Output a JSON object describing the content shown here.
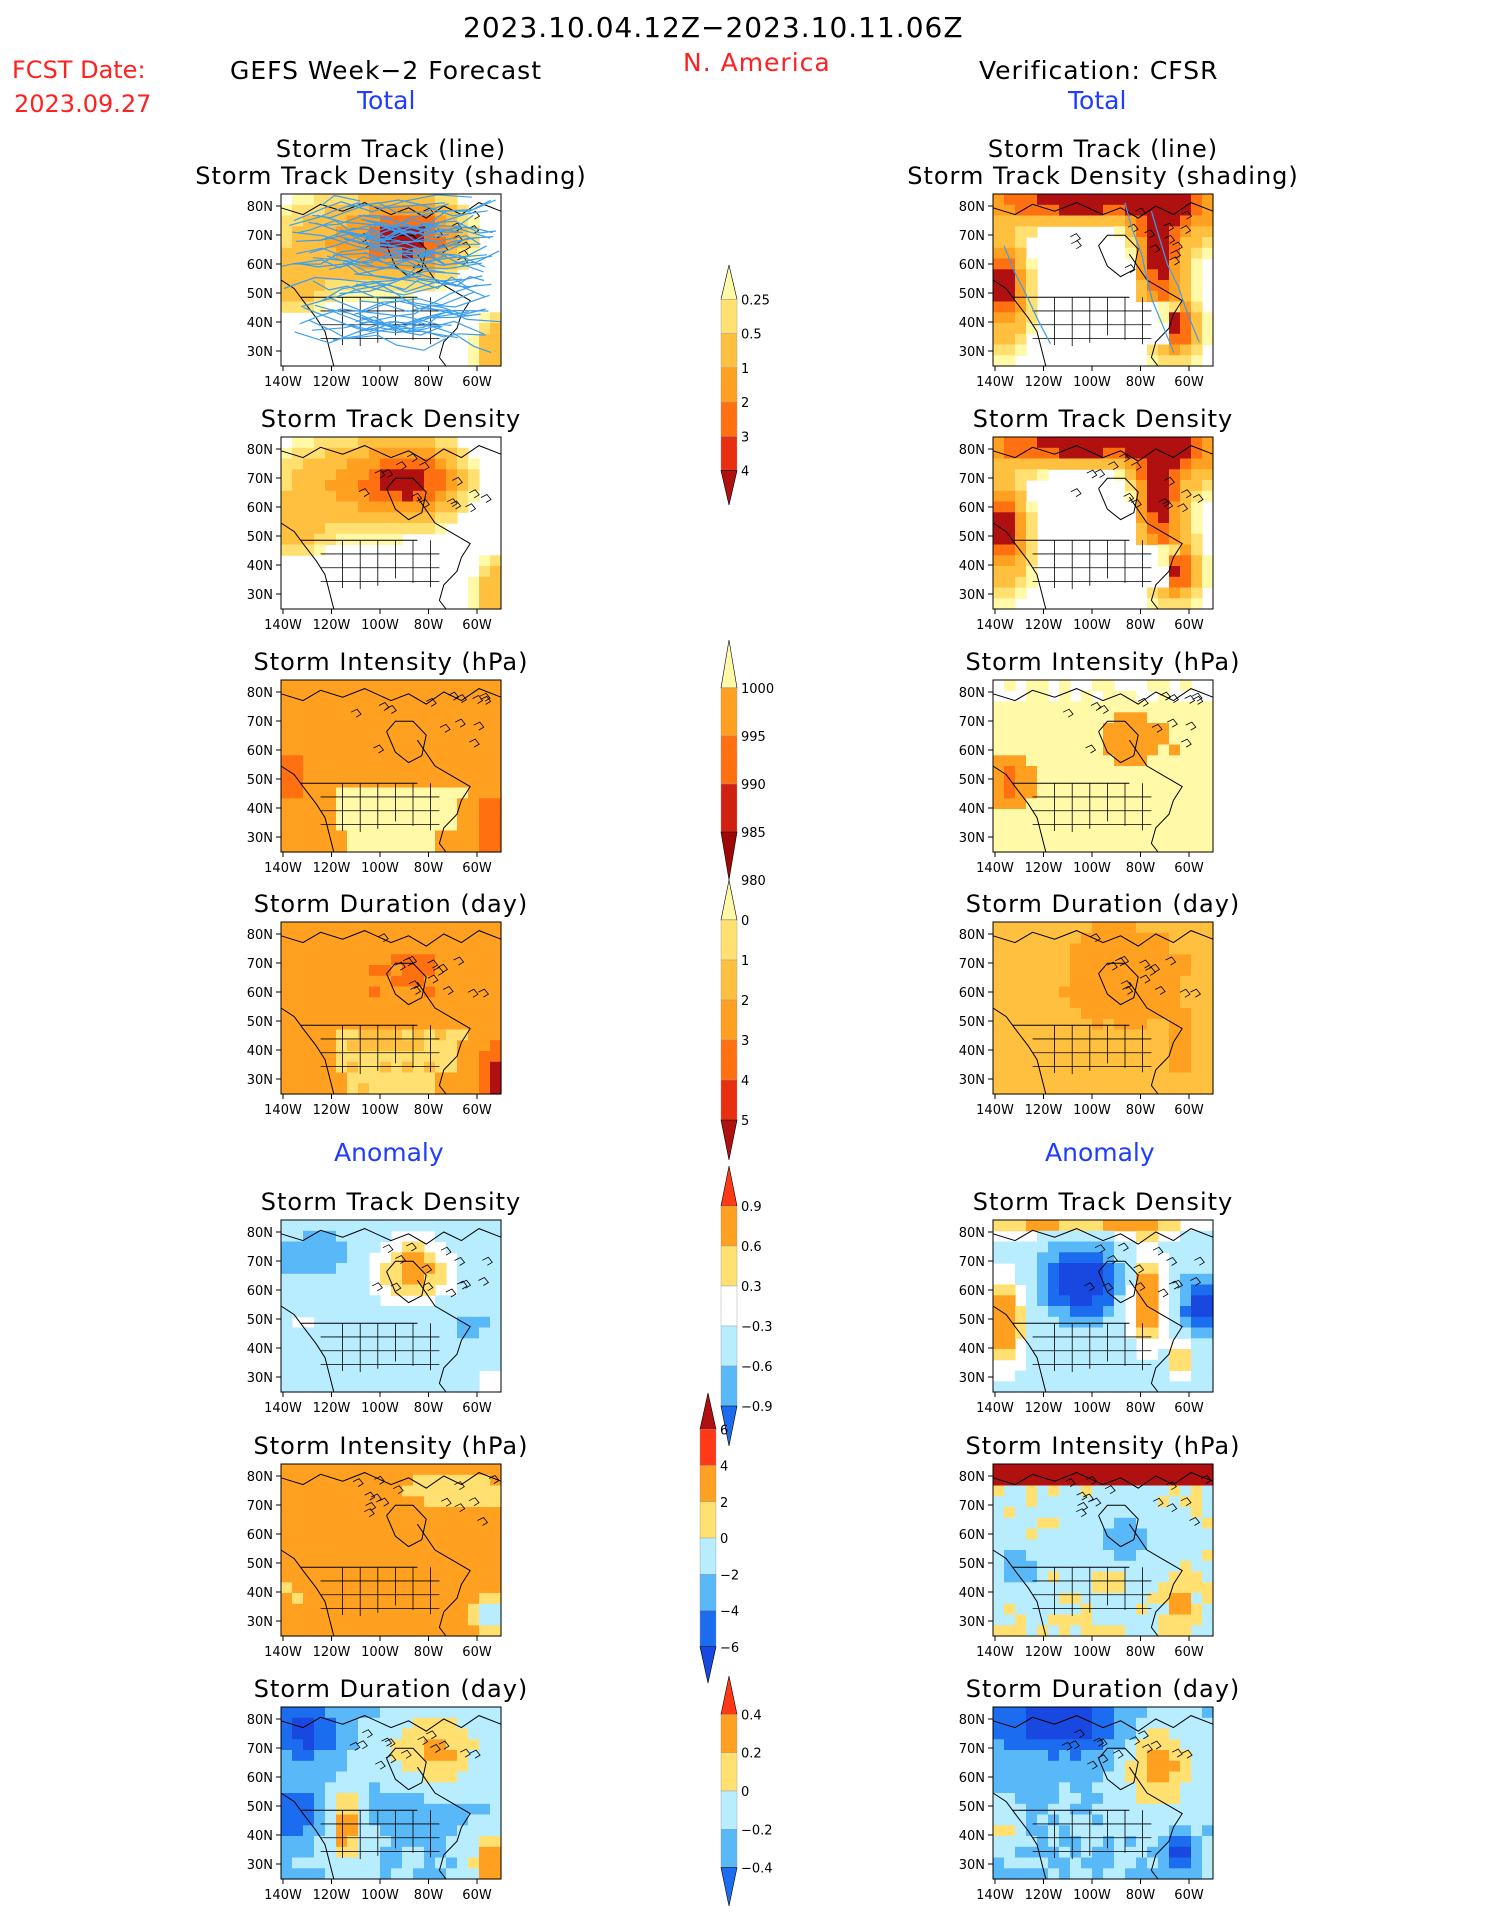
{
  "header": {
    "period": "2023.10.04.12Z−2023.10.11.06Z",
    "fcst_label": "FCST Date:",
    "fcst_date": "2023.09.27",
    "left_title": "GEFS Week−2 Forecast",
    "region": "N. America",
    "right_title": "Verification: CFSR",
    "total_label": "Total",
    "anomaly_label": "Anomaly"
  },
  "chart_data": {
    "type": "heatmap",
    "x_ticks": [
      "140W",
      "120W",
      "100W",
      "80W",
      "60W"
    ],
    "y_ticks": [
      "80N",
      "70N",
      "60N",
      "50N",
      "40N",
      "30N"
    ],
    "panels": [
      {
        "row": 0,
        "col": "forecast",
        "title": [
          "Storm Track (line)",
          "Storm Track Density (shading)"
        ],
        "field": "density",
        "tracks": true
      },
      {
        "row": 0,
        "col": "verification",
        "title": [
          "Storm Track (line)",
          "Storm Track Density (shading)"
        ],
        "field": "density",
        "tracks": true
      },
      {
        "row": 1,
        "col": "forecast",
        "title": [
          "Storm Track Density"
        ],
        "field": "density"
      },
      {
        "row": 1,
        "col": "verification",
        "title": [
          "Storm Track Density"
        ],
        "field": "density"
      },
      {
        "row": 2,
        "col": "forecast",
        "title": [
          "Storm Intensity (hPa)"
        ],
        "field": "intensity"
      },
      {
        "row": 2,
        "col": "verification",
        "title": [
          "Storm Intensity (hPa)"
        ],
        "field": "intensity"
      },
      {
        "row": 3,
        "col": "forecast",
        "title": [
          "Storm Duration (day)"
        ],
        "field": "duration"
      },
      {
        "row": 3,
        "col": "verification",
        "title": [
          "Storm Duration (day)"
        ],
        "field": "duration"
      },
      {
        "row": 4,
        "col": "forecast",
        "title": [
          "Storm Track Density"
        ],
        "field": "density_anom"
      },
      {
        "row": 4,
        "col": "verification",
        "title": [
          "Storm Track Density"
        ],
        "field": "density_anom"
      },
      {
        "row": 5,
        "col": "forecast",
        "title": [
          "Storm Intensity (hPa)"
        ],
        "field": "intensity_anom"
      },
      {
        "row": 5,
        "col": "verification",
        "title": [
          "Storm Intensity (hPa)"
        ],
        "field": "intensity_anom"
      },
      {
        "row": 6,
        "col": "forecast",
        "title": [
          "Storm Duration (day)"
        ],
        "field": "duration_anom"
      },
      {
        "row": 6,
        "col": "verification",
        "title": [
          "Storm Duration (day)"
        ],
        "field": "duration_anom"
      }
    ],
    "colorbars": [
      {
        "name": "density",
        "labels": [
          "0.25",
          "0.5",
          "1",
          "2",
          "3",
          "4"
        ],
        "colors": [
          "#fff9a8",
          "#ffe070",
          "#ffc040",
          "#ffa020",
          "#ff7010",
          "#e83010",
          "#b01010"
        ],
        "extend": "max"
      },
      {
        "name": "intensity",
        "labels": [
          "1000",
          "995",
          "990",
          "985",
          "980"
        ],
        "colors": [
          "#fff9a8",
          "#ffa020",
          "#ff7010",
          "#d02010",
          "#a00808"
        ],
        "extend": "min"
      },
      {
        "name": "duration",
        "labels": [
          "0",
          "1",
          "2",
          "3",
          "4",
          "5"
        ],
        "colors": [
          "#fff9a8",
          "#ffe070",
          "#ffc040",
          "#ffa020",
          "#ff7010",
          "#e83010",
          "#b01010"
        ],
        "extend": "max"
      },
      {
        "name": "density_anom",
        "labels": [
          "0.9",
          "0.6",
          "0.3",
          "−0.3",
          "−0.6",
          "−0.9"
        ],
        "colors": [
          "#ff3818",
          "#ffa020",
          "#ffe070",
          "#ffffff",
          "#b8ecff",
          "#58b8f8",
          "#1c6cf0"
        ],
        "extend": "both"
      },
      {
        "name": "intensity_anom",
        "labels": [
          "6",
          "4",
          "2",
          "0",
          "−2",
          "−4",
          "−6"
        ],
        "colors": [
          "#b01010",
          "#ff3818",
          "#ffa020",
          "#ffe070",
          "#b8ecff",
          "#58b8f8",
          "#1c6cf0",
          "#1848e0"
        ],
        "extend": "both"
      },
      {
        "name": "duration_anom",
        "labels": [
          "0.4",
          "0.2",
          "0",
          "−0.2",
          "−0.4"
        ],
        "colors": [
          "#ff3818",
          "#ffa020",
          "#ffe070",
          "#b8ecff",
          "#58b8f8",
          "#1c6cf0"
        ],
        "extend": "both"
      }
    ]
  }
}
